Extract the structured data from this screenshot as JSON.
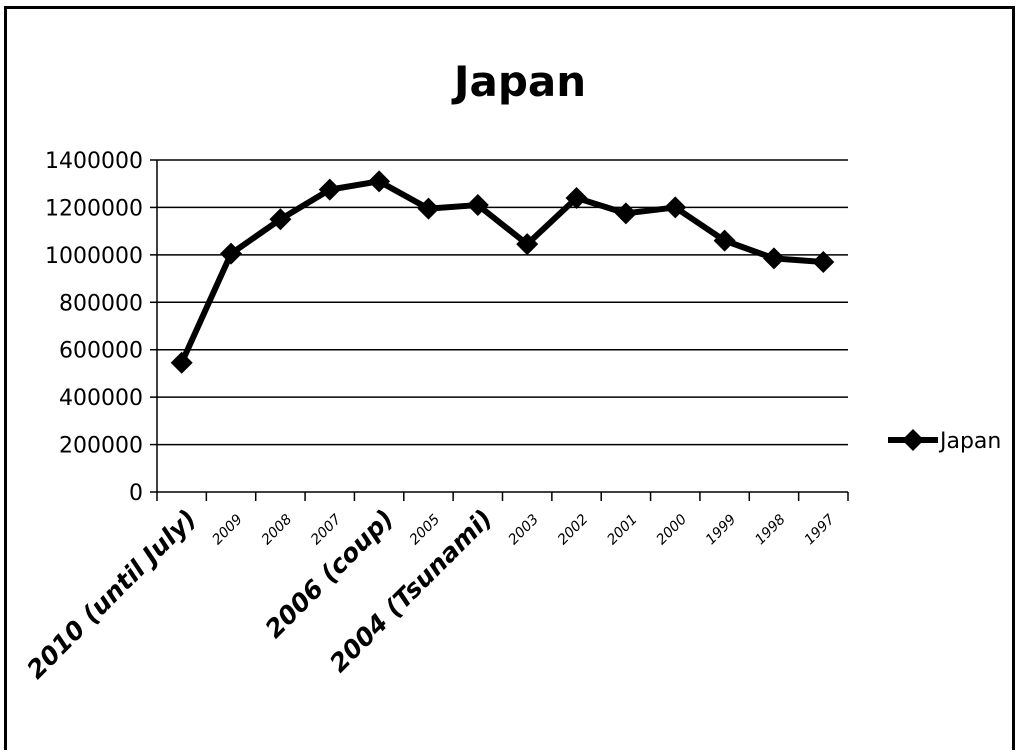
{
  "chart_data": {
    "type": "line",
    "title": "Japan",
    "xlabel": "",
    "ylabel": "",
    "categories": [
      "2010 (until July)",
      "2009",
      "2008",
      "2007",
      "2006 (coup)",
      "2005",
      "2004 (Tsunami)",
      "2003",
      "2002",
      "2001",
      "2000",
      "1999",
      "1998",
      "1997"
    ],
    "series": [
      {
        "name": "Japan",
        "values": [
          545000,
          1005000,
          1150000,
          1275000,
          1310000,
          1195000,
          1210000,
          1045000,
          1240000,
          1175000,
          1200000,
          1060000,
          985000,
          970000
        ]
      }
    ],
    "yticks": [
      "0",
      "200000",
      "400000",
      "600000",
      "800000",
      "1000000",
      "1200000",
      "1400000"
    ],
    "ylim": [
      0,
      1400000
    ],
    "grid": true,
    "legend": "right",
    "line_color": "#000000"
  }
}
